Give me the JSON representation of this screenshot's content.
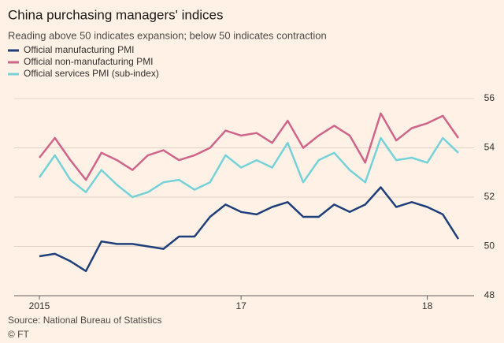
{
  "chart_data": {
    "type": "line",
    "title": "China purchasing managers' indices",
    "subtitle": "Reading above 50 indicates expansion; below 50 indicates contraction",
    "source": "Source: National Bureau of Statistics",
    "credit": "© FT",
    "categories": [
      "2015",
      null,
      null,
      null,
      null,
      null,
      null,
      null,
      null,
      null,
      null,
      null,
      null,
      "17",
      null,
      null,
      null,
      null,
      null,
      null,
      null,
      null,
      null,
      null,
      null,
      "18",
      null,
      null
    ],
    "series": [
      {
        "name": "Official manufacturing PMI",
        "color": "#1f3f7a",
        "values": [
          49.6,
          49.7,
          49.4,
          49.0,
          50.2,
          50.1,
          50.1,
          50.0,
          49.9,
          50.4,
          50.4,
          51.2,
          51.7,
          51.4,
          51.3,
          51.6,
          51.8,
          51.2,
          51.2,
          51.7,
          51.4,
          51.7,
          52.4,
          51.6,
          51.8,
          51.6,
          51.3,
          50.3
        ]
      },
      {
        "name": "Official non-manufacturing PMI",
        "color": "#d0658a",
        "values": [
          53.6,
          54.4,
          53.5,
          52.7,
          53.8,
          53.5,
          53.1,
          53.7,
          53.9,
          53.5,
          53.7,
          54.0,
          54.7,
          54.5,
          54.6,
          54.2,
          55.1,
          54.0,
          54.5,
          54.9,
          54.5,
          53.4,
          55.4,
          54.3,
          54.8,
          55.0,
          55.3,
          54.4
        ]
      },
      {
        "name": "Official services PMI (sub-index)",
        "color": "#74d2d8",
        "values": [
          52.8,
          53.7,
          52.7,
          52.2,
          53.1,
          52.5,
          52.0,
          52.2,
          52.6,
          52.7,
          52.3,
          52.6,
          53.7,
          53.2,
          53.5,
          53.2,
          54.2,
          52.6,
          53.5,
          53.8,
          53.1,
          52.6,
          54.4,
          53.5,
          53.6,
          53.4,
          54.4,
          53.8
        ]
      }
    ],
    "ylim": [
      48,
      56
    ],
    "yticks": [
      48,
      50,
      52,
      54,
      56
    ],
    "grid": true,
    "legend": "top-left"
  }
}
